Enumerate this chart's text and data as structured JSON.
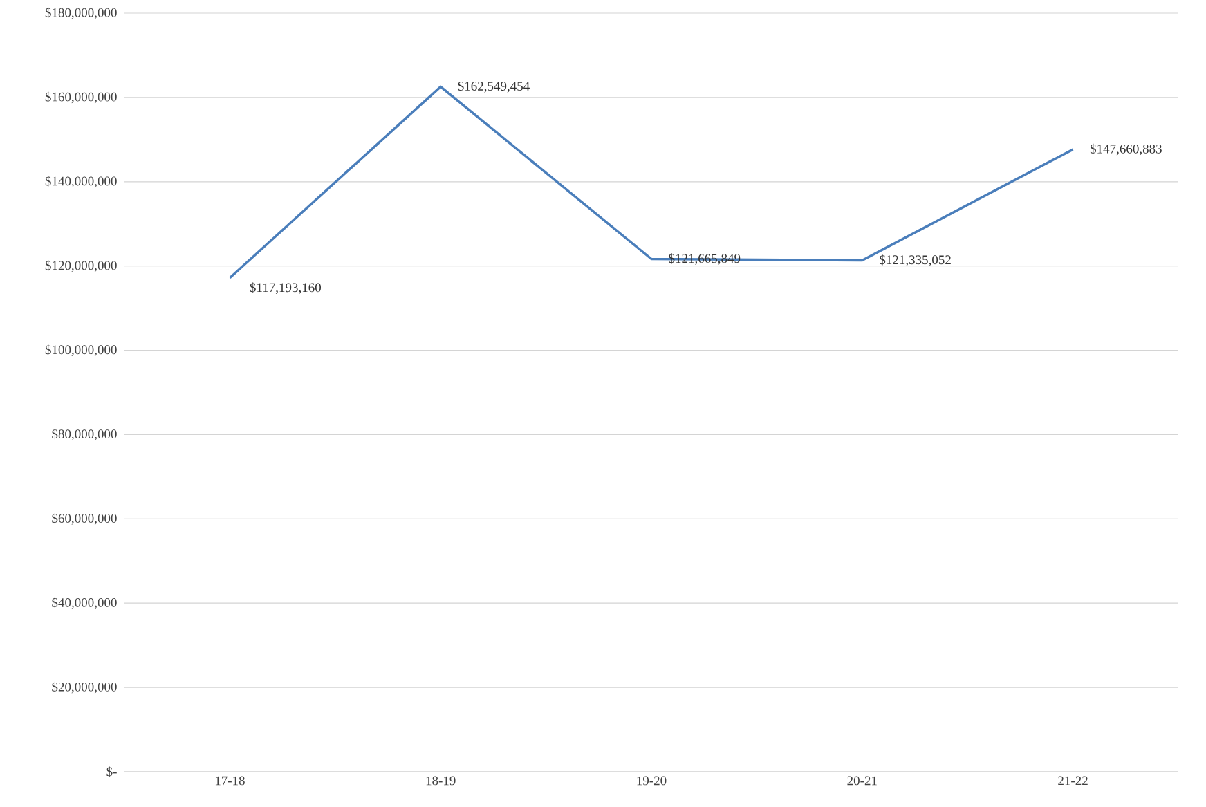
{
  "chart_data": {
    "type": "line",
    "categories": [
      "17-18",
      "18-19",
      "19-20",
      "20-21",
      "21-22"
    ],
    "series": [
      {
        "color": "#4a7ebb",
        "values": [
          117193160,
          162549454,
          121665849,
          121335052,
          147660883
        ],
        "value_labels": [
          "$117,193,160",
          "$162,549,454",
          "$121,665,849",
          "$121,335,052",
          "$147,660,883"
        ]
      }
    ],
    "ylim": [
      0,
      180000000
    ],
    "yticks": [
      {
        "value": 0,
        "label": "$-"
      },
      {
        "value": 20000000,
        "label": "$20,000,000"
      },
      {
        "value": 40000000,
        "label": "$40,000,000"
      },
      {
        "value": 60000000,
        "label": "$60,000,000"
      },
      {
        "value": 80000000,
        "label": "$80,000,000"
      },
      {
        "value": 100000000,
        "label": "$100,000,000"
      },
      {
        "value": 120000000,
        "label": "$120,000,000"
      },
      {
        "value": 140000000,
        "label": "$140,000,000"
      },
      {
        "value": 160000000,
        "label": "$160,000,000"
      },
      {
        "value": 180000000,
        "label": "$180,000,000"
      }
    ],
    "grid": "y",
    "marker": "none",
    "line_style": "solid"
  }
}
